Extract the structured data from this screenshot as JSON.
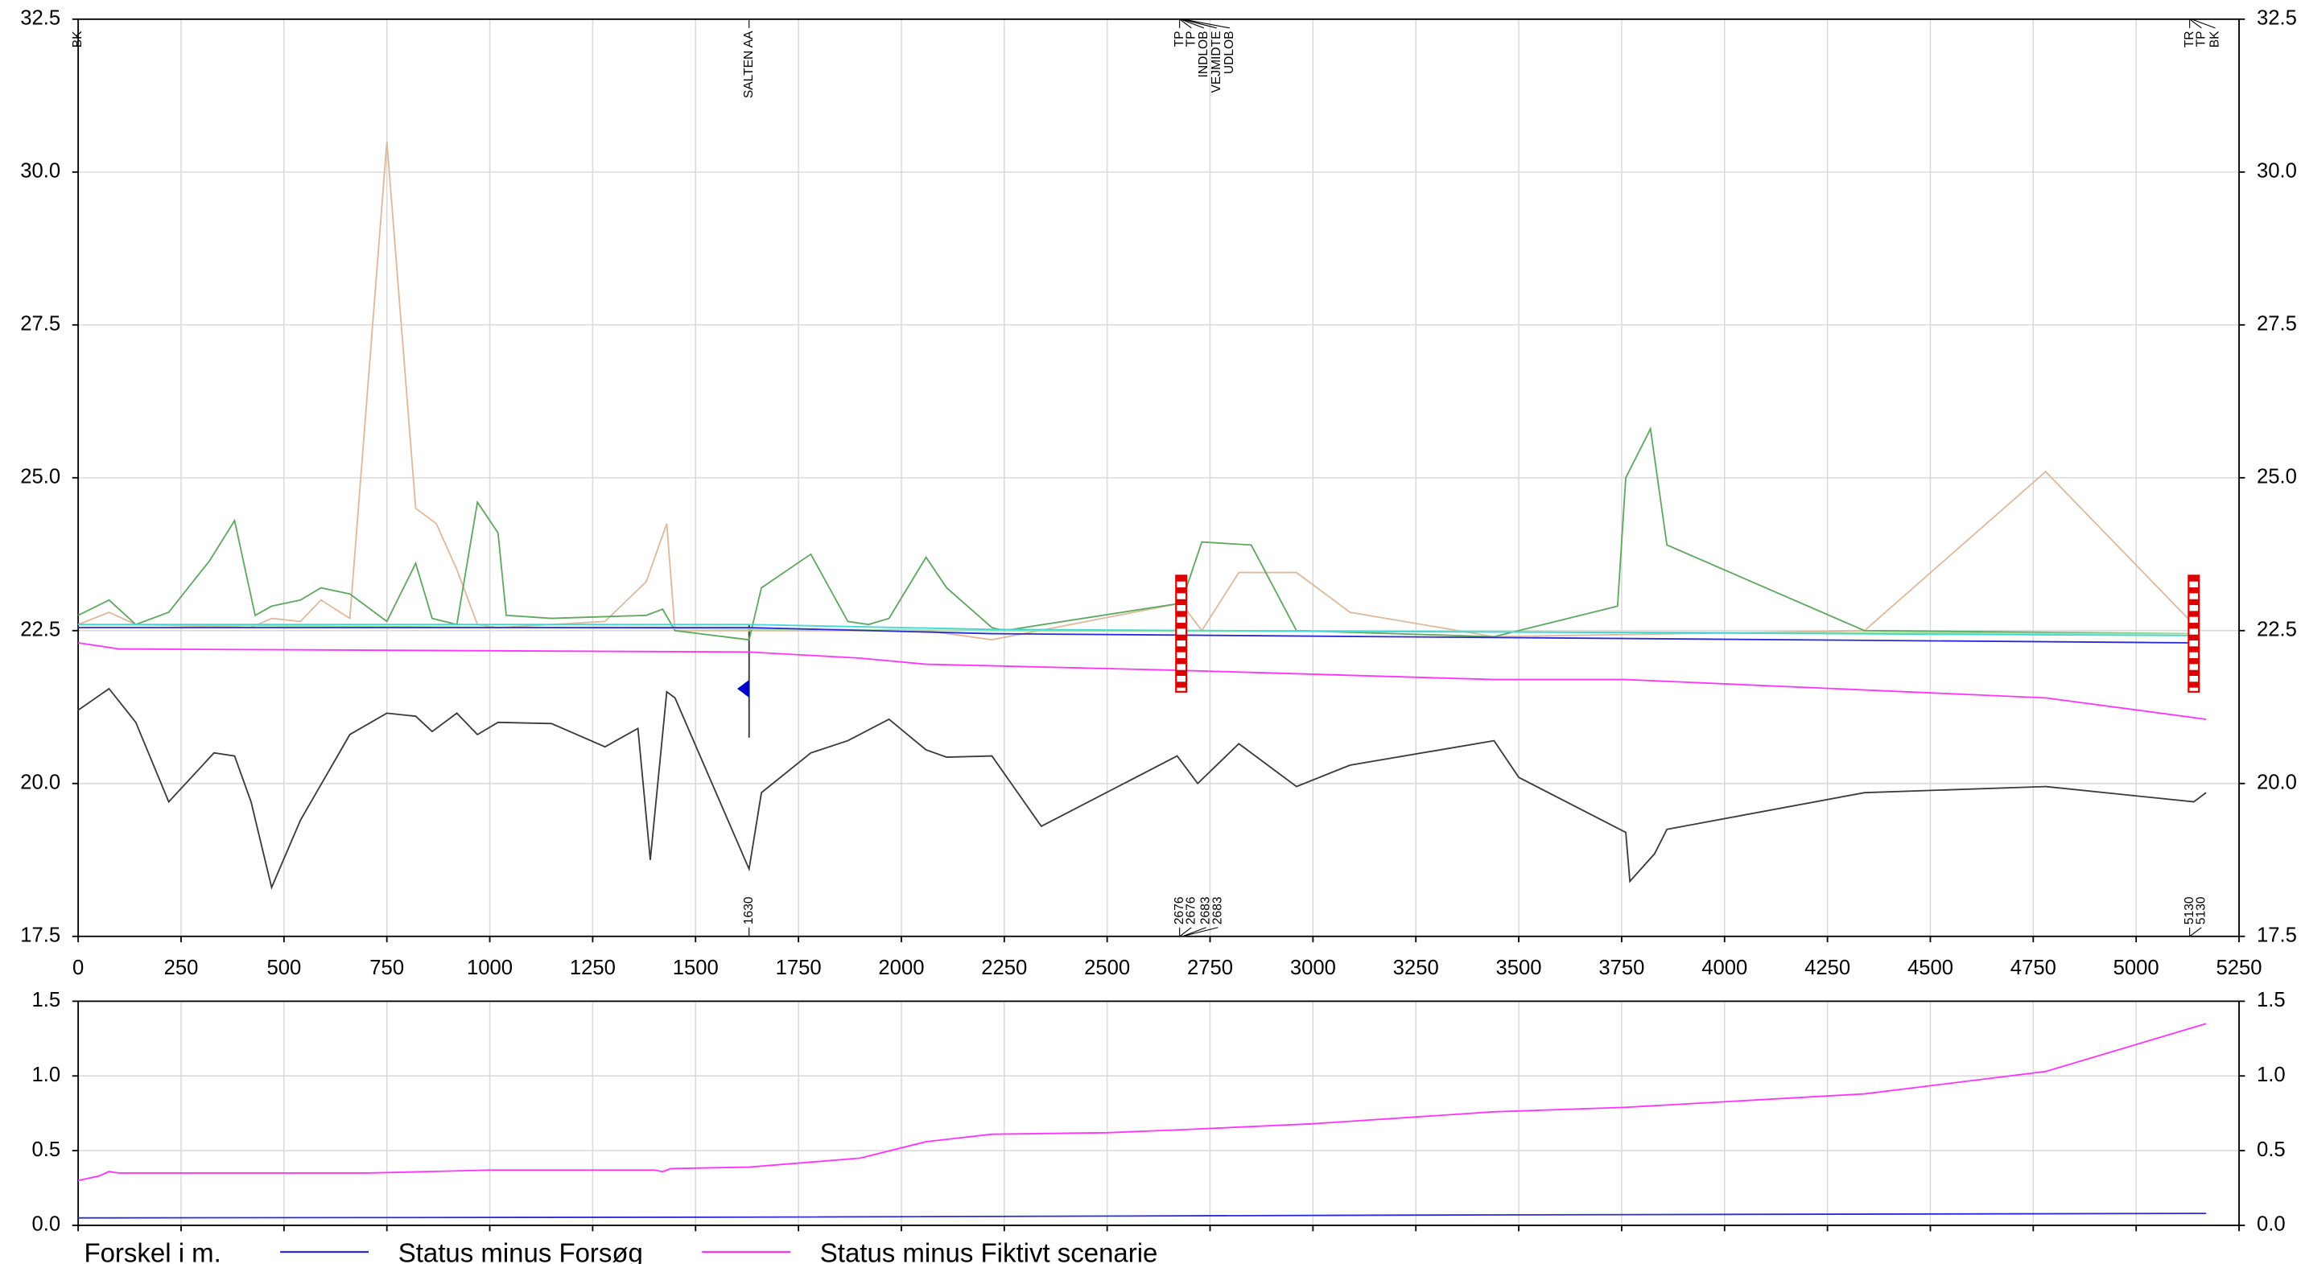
{
  "chart_data": [
    {
      "type": "line",
      "xlim": [
        0,
        5250
      ],
      "xticks": [
        0,
        250,
        500,
        750,
        1000,
        1250,
        1500,
        1750,
        2000,
        2250,
        2500,
        2750,
        3000,
        3250,
        3500,
        3750,
        4000,
        4250,
        4500,
        4750,
        5000,
        5250
      ],
      "ylim": [
        17.5,
        32.5
      ],
      "yticks": [
        17.5,
        {
          "value": 20,
          "label": "20.0"
        },
        22.5,
        {
          "value": 25,
          "label": "25.0"
        },
        27.5,
        {
          "value": 30,
          "label": "30.0"
        },
        32.5
      ],
      "grid": true,
      "series": [
        {
          "color": "#3a3a3a",
          "x": [
            0,
            75,
            140,
            220,
            330,
            380,
            420,
            470,
            540,
            600,
            660,
            750,
            820,
            860,
            920,
            970,
            1020,
            1150,
            1280,
            1360,
            1390,
            1430,
            1450,
            1630,
            1660,
            1780,
            1870,
            1970,
            2060,
            2110,
            2220,
            2340,
            2670,
            2720,
            2820,
            2960,
            3090,
            3440,
            3500,
            3760,
            3770,
            3830,
            3860,
            4340,
            4780,
            5140,
            5170
          ],
          "values": [
            21.2,
            21.55,
            21.0,
            19.7,
            20.5,
            20.45,
            19.7,
            18.3,
            19.4,
            20.1,
            20.8,
            21.15,
            21.1,
            20.85,
            21.15,
            20.8,
            21.0,
            20.98,
            20.6,
            20.9,
            18.75,
            21.5,
            21.4,
            18.6,
            19.85,
            20.5,
            20.7,
            21.05,
            20.55,
            20.43,
            20.45,
            19.3,
            20.45,
            20.0,
            20.65,
            19.95,
            20.3,
            20.7,
            20.1,
            19.2,
            18.4,
            18.85,
            19.25,
            19.85,
            19.95,
            19.7,
            19.85
          ]
        },
        {
          "color": "#e0b89a",
          "x": [
            0,
            75,
            140,
            420,
            470,
            540,
            590,
            660,
            750,
            820,
            870,
            920,
            970,
            1020,
            1280,
            1380,
            1430,
            1450,
            2060,
            2220,
            2680,
            2730,
            2820,
            2960,
            3090,
            3440,
            4340,
            4780,
            5140
          ],
          "values": [
            22.6,
            22.8,
            22.6,
            22.55,
            22.7,
            22.65,
            23.0,
            22.7,
            30.5,
            24.5,
            24.25,
            23.5,
            22.6,
            22.55,
            22.65,
            23.3,
            24.25,
            22.5,
            22.5,
            22.35,
            22.95,
            22.5,
            23.45,
            23.45,
            22.8,
            22.4,
            22.5,
            25.1,
            22.6
          ]
        },
        {
          "color": "#5fa85f",
          "x": [
            0,
            75,
            140,
            220,
            320,
            380,
            430,
            470,
            540,
            590,
            660,
            750,
            820,
            860,
            920,
            970,
            1020,
            1040,
            1150,
            1380,
            1420,
            1450,
            1630,
            1660,
            1780,
            1870,
            1920,
            1970,
            2060,
            2110,
            2220,
            2250,
            2680,
            2730,
            2850,
            2960,
            3440,
            3740,
            3760,
            3820,
            3860,
            4340,
            5140
          ],
          "values": [
            22.75,
            23.0,
            22.6,
            22.8,
            23.65,
            24.3,
            22.75,
            22.9,
            23.0,
            23.2,
            23.1,
            22.65,
            23.6,
            22.7,
            22.6,
            24.6,
            24.1,
            22.75,
            22.7,
            22.75,
            22.85,
            22.5,
            22.35,
            23.2,
            23.75,
            22.65,
            22.6,
            22.7,
            23.7,
            23.2,
            22.55,
            22.5,
            22.95,
            23.95,
            23.9,
            22.5,
            22.4,
            22.9,
            25.0,
            25.8,
            23.9,
            22.5,
            22.45
          ]
        },
        {
          "color": "#9fdf9f",
          "x": [
            0,
            2220,
            5140
          ],
          "values": [
            22.6,
            22.5,
            22.45
          ]
        },
        {
          "color": "#40d8d8",
          "x": [
            0,
            1630,
            2220,
            5140
          ],
          "values": [
            22.6,
            22.6,
            22.52,
            22.42
          ]
        },
        {
          "color": "#2a2ad8",
          "x": [
            0,
            1630,
            2220,
            5140
          ],
          "values": [
            22.55,
            22.55,
            22.45,
            22.3
          ]
        },
        {
          "color": "#ff33ff",
          "x": [
            0,
            100,
            1630,
            1900,
            2060,
            2680,
            3440,
            3760,
            4780,
            5170
          ],
          "values": [
            22.3,
            22.2,
            22.15,
            22.05,
            21.95,
            21.85,
            21.7,
            21.7,
            21.4,
            21.05
          ]
        }
      ],
      "reference_lines": [
        {
          "x": 1630,
          "ylow": 20.75,
          "yhigh": 22.6
        }
      ],
      "marker": {
        "x": 1630,
        "y": 21.55,
        "color": "#0000cc"
      },
      "structures": [
        {
          "x": 2680,
          "ylow": 21.5,
          "yhigh": 23.4
        },
        {
          "x": 5140,
          "ylow": 21.5,
          "yhigh": 23.4
        }
      ],
      "top_annotations": [
        {
          "text": "BK",
          "x": 0
        },
        {
          "text": "SALTEN AA",
          "x": 1630
        },
        {
          "text": "TP",
          "x": 2676
        },
        {
          "text": "TP",
          "x": 2676
        },
        {
          "text": "INDLOB",
          "x": 2678
        },
        {
          "text": "VEJMIDTE",
          "x": 2680
        },
        {
          "text": "UDLOB",
          "x": 2683
        },
        {
          "text": "TR",
          "x": 5130
        },
        {
          "text": "TP",
          "x": 5130
        },
        {
          "text": "BK",
          "x": 5135
        }
      ],
      "bottom_annotations": [
        {
          "text": "1630",
          "x": 1630
        },
        {
          "text": "2676",
          "x": 2676
        },
        {
          "text": "2676",
          "x": 2676
        },
        {
          "text": "2683",
          "x": 2683
        },
        {
          "text": "2683",
          "x": 2683
        },
        {
          "text": "5130",
          "x": 5130
        },
        {
          "text": "5130",
          "x": 5130
        }
      ]
    },
    {
      "type": "line",
      "xlim": [
        0,
        5250
      ],
      "xticks": [
        0,
        250,
        500,
        750,
        1000,
        1250,
        1500,
        1750,
        2000,
        2250,
        2500,
        2750,
        3000,
        3250,
        3500,
        3750,
        4000,
        4250,
        4500,
        4750,
        5000,
        5250
      ],
      "ylim": [
        0,
        1.5
      ],
      "yticks": [
        {
          "value": 0,
          "label": "0.0"
        },
        0.5,
        {
          "value": 1,
          "label": "1.0"
        },
        1.5
      ],
      "grid": true,
      "legend_title": "Forskel i m.",
      "series": [
        {
          "name": "Status minus Forsøg",
          "color": "#2a2ad8",
          "x": [
            0,
            1630,
            3440,
            5170
          ],
          "values": [
            0.05,
            0.055,
            0.07,
            0.08
          ]
        },
        {
          "name": "Status minus Fiktivt scenarie",
          "color": "#ff33ff",
          "x": [
            0,
            50,
            75,
            100,
            700,
            850,
            1000,
            1400,
            1420,
            1440,
            1630,
            1900,
            2060,
            2220,
            2500,
            2680,
            3000,
            3440,
            3760,
            4340,
            4780,
            5170
          ],
          "values": [
            0.3,
            0.33,
            0.36,
            0.35,
            0.35,
            0.36,
            0.37,
            0.37,
            0.36,
            0.38,
            0.39,
            0.45,
            0.56,
            0.61,
            0.62,
            0.64,
            0.68,
            0.76,
            0.79,
            0.88,
            1.03,
            1.35
          ]
        }
      ]
    }
  ]
}
